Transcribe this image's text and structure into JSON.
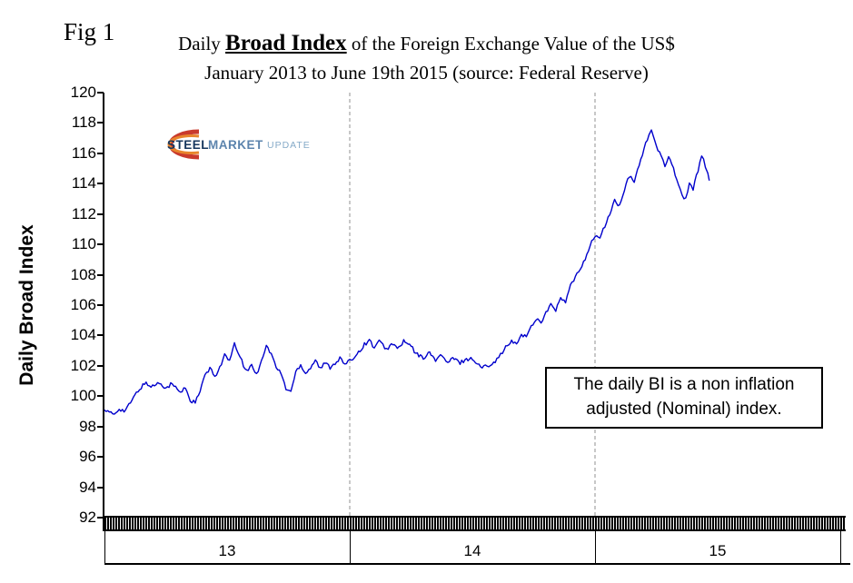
{
  "fig_label": "Fig 1",
  "title": {
    "prefix": "Daily ",
    "emphasis": "Broad Index",
    "suffix": " of the Foreign Exchange Value of the US$",
    "line2": "January 2013 to June 19th 2015 (source: Federal Reserve)"
  },
  "logo": {
    "word1": "STEEL",
    "word2": "MARKET",
    "word3": "UPDATE",
    "swoosh_color_outer": "#c93a2c",
    "swoosh_color_inner": "#e8852c",
    "word1_color": "#16365d",
    "word2_color": "#5c84ad",
    "word3_color": "#85aac8"
  },
  "annotation": {
    "line1": "The daily BI is a non inflation",
    "line2": "adjusted (Nominal) index."
  },
  "chart_data": {
    "type": "line",
    "title": "Daily Broad Index of the Foreign Exchange Value of the US$ — January 2013 to June 19th 2015 (source: Federal Reserve)",
    "ylabel": "Daily Broad Index",
    "xlabel": "",
    "ylim": [
      92,
      120
    ],
    "y_tick_step": 2,
    "y_ticks": [
      120,
      118,
      116,
      114,
      112,
      110,
      108,
      106,
      104,
      102,
      100,
      98,
      96,
      94,
      92
    ],
    "x_tick_labels": [
      "13",
      "14",
      "15"
    ],
    "x_domain_note": "x axis spans Jan 2013 to Dec 2015; data plotted through Jun 19 2015",
    "gridlines": "vertical dashed lines at year boundaries only",
    "legend": "none",
    "line_color": "#0000cc",
    "gridline_color": "#909090",
    "noise_amplitude": 0.13,
    "series": [
      {
        "name": "US$ Broad Index (nominal, daily)",
        "x_unit": "years from Jan 2013",
        "points": [
          [
            0.0,
            99.1
          ],
          [
            0.02,
            98.9
          ],
          [
            0.04,
            98.8
          ],
          [
            0.06,
            99.2
          ],
          [
            0.08,
            99.0
          ],
          [
            0.1,
            99.4
          ],
          [
            0.13,
            100.2
          ],
          [
            0.15,
            100.6
          ],
          [
            0.17,
            100.9
          ],
          [
            0.19,
            100.6
          ],
          [
            0.21,
            100.8
          ],
          [
            0.23,
            100.9
          ],
          [
            0.25,
            100.5
          ],
          [
            0.27,
            100.8
          ],
          [
            0.29,
            100.6
          ],
          [
            0.31,
            100.2
          ],
          [
            0.33,
            100.6
          ],
          [
            0.35,
            99.7
          ],
          [
            0.37,
            99.6
          ],
          [
            0.39,
            100.3
          ],
          [
            0.41,
            101.4
          ],
          [
            0.43,
            101.8
          ],
          [
            0.45,
            101.3
          ],
          [
            0.47,
            101.9
          ],
          [
            0.49,
            102.7
          ],
          [
            0.51,
            102.3
          ],
          [
            0.53,
            103.4
          ],
          [
            0.545,
            102.9
          ],
          [
            0.56,
            102.3
          ],
          [
            0.58,
            101.6
          ],
          [
            0.6,
            102.1
          ],
          [
            0.62,
            101.4
          ],
          [
            0.64,
            102.4
          ],
          [
            0.66,
            103.3
          ],
          [
            0.68,
            102.8
          ],
          [
            0.7,
            101.9
          ],
          [
            0.72,
            101.5
          ],
          [
            0.74,
            100.5
          ],
          [
            0.76,
            100.3
          ],
          [
            0.78,
            101.6
          ],
          [
            0.8,
            102.1
          ],
          [
            0.82,
            101.5
          ],
          [
            0.84,
            101.9
          ],
          [
            0.86,
            102.4
          ],
          [
            0.88,
            101.8
          ],
          [
            0.9,
            102.2
          ],
          [
            0.92,
            101.9
          ],
          [
            0.94,
            102.2
          ],
          [
            0.96,
            102.5
          ],
          [
            0.98,
            102.1
          ],
          [
            1.0,
            102.3
          ],
          [
            1.03,
            102.8
          ],
          [
            1.06,
            103.4
          ],
          [
            1.08,
            103.7
          ],
          [
            1.1,
            103.2
          ],
          [
            1.12,
            103.6
          ],
          [
            1.15,
            103.1
          ],
          [
            1.17,
            103.4
          ],
          [
            1.2,
            103.2
          ],
          [
            1.22,
            103.6
          ],
          [
            1.25,
            103.3
          ],
          [
            1.27,
            102.8
          ],
          [
            1.3,
            102.5
          ],
          [
            1.32,
            102.9
          ],
          [
            1.35,
            102.4
          ],
          [
            1.37,
            102.7
          ],
          [
            1.4,
            102.2
          ],
          [
            1.42,
            102.5
          ],
          [
            1.45,
            102.2
          ],
          [
            1.47,
            102.4
          ],
          [
            1.5,
            102.5
          ],
          [
            1.52,
            102.1
          ],
          [
            1.54,
            101.9
          ],
          [
            1.56,
            102.0
          ],
          [
            1.58,
            102.2
          ],
          [
            1.6,
            102.4
          ],
          [
            1.63,
            103.1
          ],
          [
            1.66,
            103.6
          ],
          [
            1.68,
            103.4
          ],
          [
            1.7,
            104.1
          ],
          [
            1.72,
            103.9
          ],
          [
            1.74,
            104.6
          ],
          [
            1.76,
            105.1
          ],
          [
            1.78,
            104.9
          ],
          [
            1.8,
            105.5
          ],
          [
            1.82,
            106.0
          ],
          [
            1.84,
            105.7
          ],
          [
            1.86,
            106.4
          ],
          [
            1.88,
            106.2
          ],
          [
            1.9,
            107.3
          ],
          [
            1.92,
            107.8
          ],
          [
            1.94,
            108.4
          ],
          [
            1.96,
            109.1
          ],
          [
            1.98,
            109.9
          ],
          [
            2.0,
            110.6
          ],
          [
            2.02,
            110.4
          ],
          [
            2.04,
            111.2
          ],
          [
            2.06,
            112.0
          ],
          [
            2.08,
            112.9
          ],
          [
            2.1,
            112.5
          ],
          [
            2.12,
            113.6
          ],
          [
            2.14,
            114.5
          ],
          [
            2.16,
            114.1
          ],
          [
            2.18,
            115.3
          ],
          [
            2.2,
            116.3
          ],
          [
            2.22,
            117.2
          ],
          [
            2.23,
            117.6
          ],
          [
            2.25,
            116.4
          ],
          [
            2.27,
            115.8
          ],
          [
            2.285,
            115.1
          ],
          [
            2.3,
            115.9
          ],
          [
            2.32,
            115.0
          ],
          [
            2.34,
            114.0
          ],
          [
            2.355,
            113.2
          ],
          [
            2.37,
            113.0
          ],
          [
            2.385,
            114.1
          ],
          [
            2.4,
            113.6
          ],
          [
            2.42,
            114.9
          ],
          [
            2.435,
            115.9
          ],
          [
            2.45,
            115.2
          ],
          [
            2.46,
            114.6
          ],
          [
            2.466,
            114.2
          ]
        ]
      }
    ],
    "annotations": [
      "The daily BI is a non inflation adjusted (Nominal) index."
    ]
  }
}
